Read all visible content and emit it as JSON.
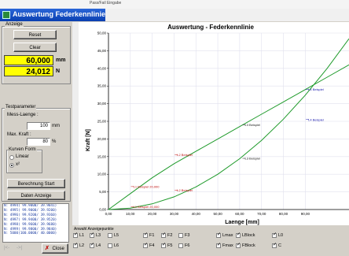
{
  "topstrip": {
    "label": "Pass/Fail Eingabe"
  },
  "window": {
    "title": "Auswertung Federkennlinien"
  },
  "anzeige": {
    "group_label": "Anzeige",
    "reset_label": "Reset",
    "clear_label": "Clear",
    "length_value": "60,000",
    "length_unit": "mm",
    "force_value": "24,012",
    "force_unit": "N"
  },
  "testparameter": {
    "group_label": "Testparameter",
    "mess_laenge_label": "Mess-Laenge :",
    "mess_laenge_value": "100",
    "mess_laenge_unit": "mm",
    "max_kraft_label": "Max. Kraft :",
    "max_kraft_value": "80",
    "max_kraft_unit": "%",
    "kurven_form_label": "Kurven Form",
    "option_linear": "Linear",
    "option_x2": "x²",
    "selected": "x²"
  },
  "buttons": {
    "berechnung_label": "Berechnung Start",
    "daten_label": "Daten Anzeige",
    "close_label": "Close"
  },
  "log_lines": [
    "N: 4994( 99.9000/ 39.9041)",
    "N: 4995( 99.9000/ 39.9200)",
    "N: 4996( 99.9200/ 39.9360)",
    "N: 4997( 99.9400/ 39.9520)",
    "N: 4998( 99.9600/ 39.9680)",
    "N: 4999( 99.9800/ 39.9840)",
    "N: 5000(100.0000/ 40.0000)"
  ],
  "nav": {
    "prev_label": "|<-",
    "next_label": "->|"
  },
  "bottom": {
    "group_label": "Anwahl Anzeigepunkte",
    "checkboxes": [
      {
        "label": "L1",
        "checked": true
      },
      {
        "label": "L3",
        "checked": true
      },
      {
        "label": "L5",
        "checked": false
      },
      {
        "label": "F1",
        "checked": true
      },
      {
        "label": "F2",
        "checked": true
      },
      {
        "label": "F3",
        "checked": false
      },
      {
        "label": "Lmax",
        "checked": true
      },
      {
        "label": "LBlock",
        "checked": true
      },
      {
        "label": "L0",
        "checked": true
      },
      {
        "label": "L2",
        "checked": true
      },
      {
        "label": "L4",
        "checked": true
      },
      {
        "label": "L6",
        "checked": false
      },
      {
        "label": "F4",
        "checked": true
      },
      {
        "label": "F5",
        "checked": true
      },
      {
        "label": "F6",
        "checked": false
      },
      {
        "label": "Fmax",
        "checked": true
      },
      {
        "label": "FBlock",
        "checked": true
      },
      {
        "label": "C",
        "checked": true
      }
    ]
  },
  "colors": {
    "curve": "#1e9a2a",
    "annot_blue": "#2020b0",
    "annot_red": "#c01010",
    "grid": "#e0e0ee",
    "yellow": "#ffff00",
    "titlebar": "#0a3fb0"
  },
  "chart_data": {
    "type": "line",
    "title": "Auswertung - Federkennlinie",
    "xlabel": "Laenge [mm]",
    "ylabel": "Kraft [N]",
    "xlim": [
      0,
      110
    ],
    "ylim": [
      0,
      50
    ],
    "x_ticks": [
      "0,00",
      "10,00",
      "20,00",
      "30,00",
      "40,00",
      "50,00",
      "60,00",
      "70,00",
      "80,00",
      "90,00"
    ],
    "x_tick_values": [
      0,
      10,
      20,
      30,
      40,
      50,
      60,
      70,
      80,
      90
    ],
    "y_ticks": [
      "0,00",
      "5,00",
      "10,00",
      "15,00",
      "20,00",
      "25,00",
      "30,00",
      "35,00",
      "40,00",
      "45,00",
      "50,00"
    ],
    "y_tick_values": [
      0,
      5,
      10,
      15,
      20,
      25,
      30,
      35,
      40,
      45,
      50
    ],
    "grid": true,
    "series": [
      {
        "x": [
          0,
          10,
          20,
          30,
          40,
          50,
          60,
          70,
          80,
          90,
          100,
          110
        ],
        "y": [
          0,
          4.5,
          9,
          13,
          16.5,
          20,
          23.5,
          27,
          30.5,
          34,
          37.5,
          41
        ]
      },
      {
        "x": [
          0,
          10,
          20,
          30,
          40,
          50,
          60,
          70,
          80,
          90,
          100,
          110
        ],
        "y": [
          0,
          0.4,
          1.6,
          3.6,
          6.4,
          10,
          14.4,
          19.6,
          25.6,
          32.4,
          40,
          48.4
        ]
      }
    ],
    "annotations": [
      {
        "text": "L4 Beispiel",
        "x": 91,
        "y": 34,
        "color": "#2020b0"
      },
      {
        "text": "L4 Beispiel",
        "x": 91,
        "y": 25.5,
        "color": "#2020b0"
      },
      {
        "text": "L3 Beispiel",
        "x": 62,
        "y": 24,
        "color": "#202020"
      },
      {
        "text": "L3 Beispiel",
        "x": 62,
        "y": 14.5,
        "color": "#202020"
      },
      {
        "text": "L2 Beispiel",
        "x": 31,
        "y": 15.5,
        "color": "#c01010"
      },
      {
        "text": "L2 Beispiel",
        "x": 31,
        "y": 5.5,
        "color": "#c01010"
      },
      {
        "text": "L1 Beispiel 20,000",
        "x": 11,
        "y": 6.5,
        "color": "#c01010"
      },
      {
        "text": "L1 Beispiel 20,000",
        "x": 11,
        "y": 0.8,
        "color": "#c01010"
      }
    ]
  }
}
